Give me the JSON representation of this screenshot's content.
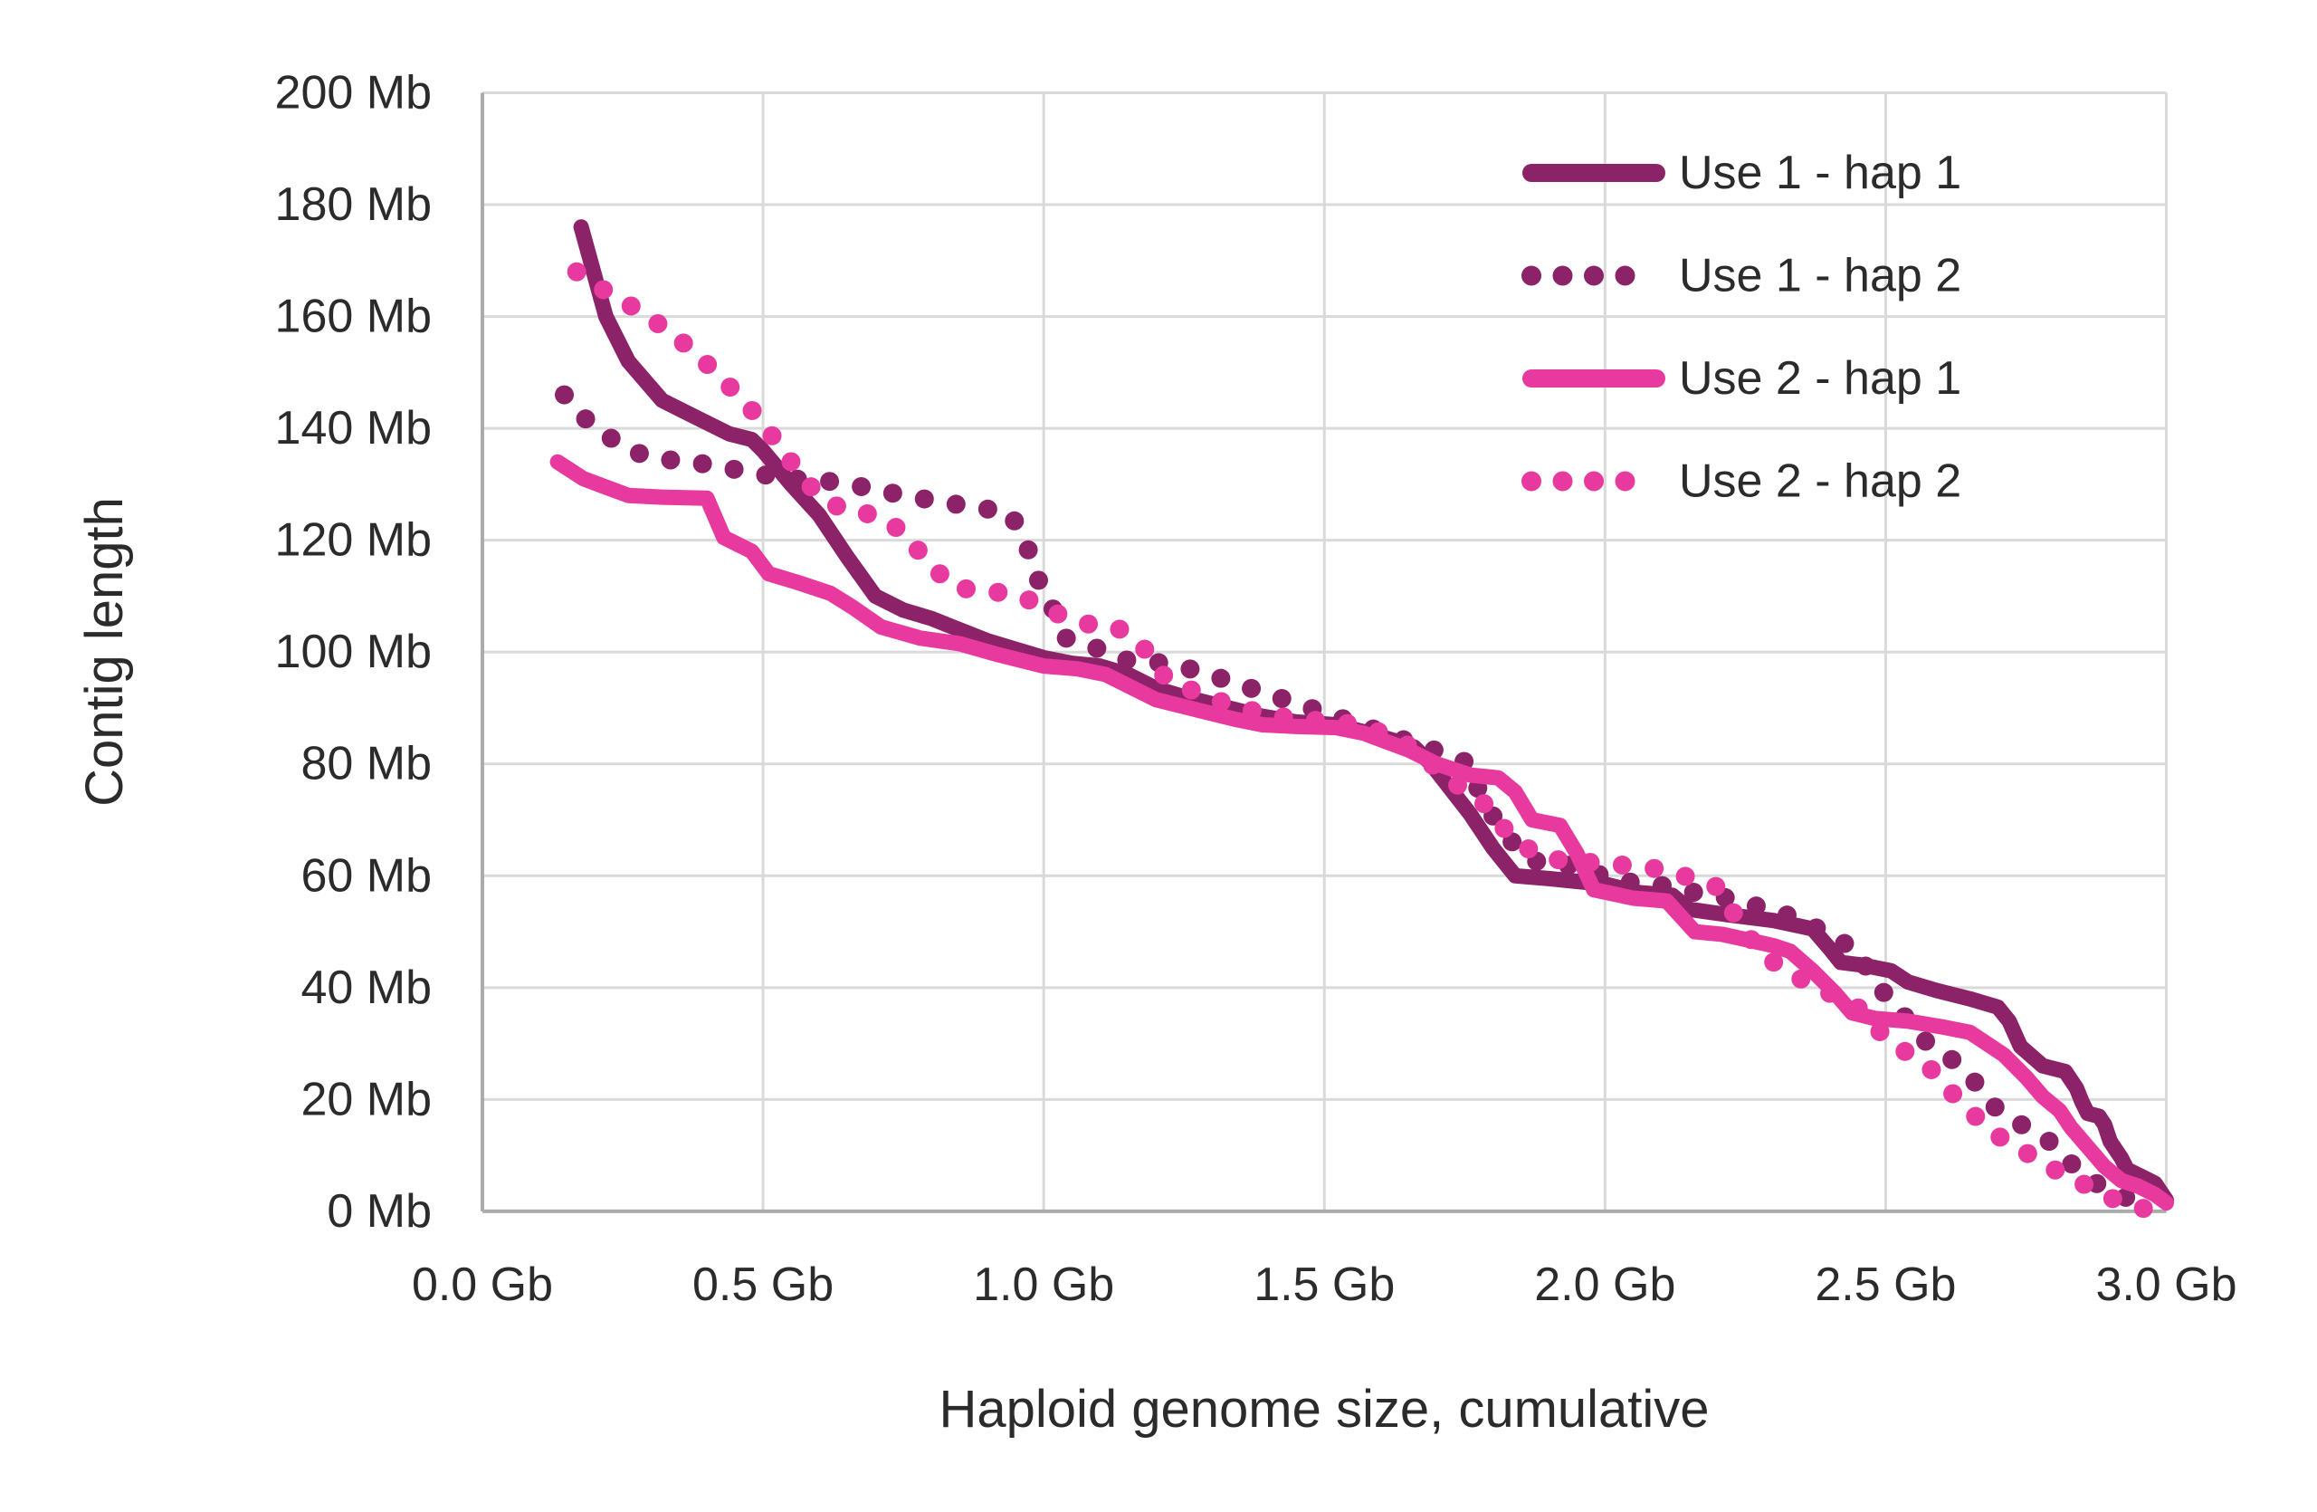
{
  "colors": {
    "use1": "#8C2268",
    "use2": "#E8399F",
    "gridline": "#D9D9D9",
    "axis": "#ABABAB",
    "text": "#2B2B2B"
  },
  "chart_data": {
    "type": "line",
    "title": "",
    "xlabel": "Haploid genome size, cumulative",
    "ylabel": "Contig length",
    "x_unit": "Gb",
    "y_unit": "Mb",
    "xlim": [
      0,
      3.0
    ],
    "ylim": [
      0,
      200
    ],
    "grid": true,
    "legend_position": "top-right",
    "x_tick_values": [
      0.0,
      0.5,
      1.0,
      1.5,
      2.0,
      2.5,
      3.0
    ],
    "x_tick_labels": [
      "0.0 Gb",
      "0.5 Gb",
      "1.0 Gb",
      "1.5 Gb",
      "2.0 Gb",
      "2.5 Gb",
      "3.0 Gb"
    ],
    "y_tick_values": [
      0,
      20,
      40,
      60,
      80,
      100,
      120,
      140,
      160,
      180,
      200
    ],
    "y_tick_labels": [
      "0 Mb",
      "20 Mb",
      "40 Mb",
      "60 Mb",
      "80 Mb",
      "100 Mb",
      "120 Mb",
      "140 Mb",
      "160 Mb",
      "180 Mb",
      "200 Mb"
    ],
    "series": [
      {
        "name": "Use 1 - hap 1",
        "style": "solid",
        "color_key": "use1",
        "points": [
          [
            0.176,
            176
          ],
          [
            0.22,
            160
          ],
          [
            0.26,
            152
          ],
          [
            0.32,
            145
          ],
          [
            0.38,
            142
          ],
          [
            0.44,
            139
          ],
          [
            0.48,
            138
          ],
          [
            0.5,
            136
          ],
          [
            0.55,
            130
          ],
          [
            0.6,
            124.5
          ],
          [
            0.65,
            117
          ],
          [
            0.7,
            110
          ],
          [
            0.75,
            107.5
          ],
          [
            0.8,
            106
          ],
          [
            0.85,
            104
          ],
          [
            0.9,
            102
          ],
          [
            0.95,
            100.5
          ],
          [
            1.0,
            99
          ],
          [
            1.05,
            98
          ],
          [
            1.1,
            97.5
          ],
          [
            1.15,
            96
          ],
          [
            1.2,
            93.5
          ],
          [
            1.25,
            92
          ],
          [
            1.33,
            90
          ],
          [
            1.39,
            88.5
          ],
          [
            1.45,
            87.5
          ],
          [
            1.52,
            87
          ],
          [
            1.58,
            85.5
          ],
          [
            1.63,
            84
          ],
          [
            1.66,
            83
          ],
          [
            1.69,
            80
          ],
          [
            1.76,
            71
          ],
          [
            1.8,
            65
          ],
          [
            1.84,
            60
          ],
          [
            1.9,
            59.5
          ],
          [
            1.95,
            59
          ],
          [
            2.0,
            58.5
          ],
          [
            2.06,
            57
          ],
          [
            2.12,
            56.5
          ],
          [
            2.15,
            54
          ],
          [
            2.22,
            53
          ],
          [
            2.3,
            52
          ],
          [
            2.37,
            50.5
          ],
          [
            2.4,
            47
          ],
          [
            2.42,
            44.5
          ],
          [
            2.46,
            44
          ],
          [
            2.51,
            43
          ],
          [
            2.54,
            41
          ],
          [
            2.59,
            39.5
          ],
          [
            2.65,
            38
          ],
          [
            2.7,
            36.5
          ],
          [
            2.72,
            34
          ],
          [
            2.74,
            29.5
          ],
          [
            2.78,
            26
          ],
          [
            2.82,
            25
          ],
          [
            2.84,
            22
          ],
          [
            2.85,
            19.5
          ],
          [
            2.86,
            17.5
          ],
          [
            2.88,
            17
          ],
          [
            2.89,
            15.5
          ],
          [
            2.9,
            12.5
          ],
          [
            2.92,
            9.5
          ],
          [
            2.93,
            7.5
          ],
          [
            2.96,
            6
          ],
          [
            2.98,
            5
          ],
          [
            3.0,
            2
          ]
        ]
      },
      {
        "name": "Use 1 - hap 2",
        "style": "dotted",
        "color_key": "use1",
        "points": [
          [
            0.146,
            146
          ],
          [
            0.19,
            141
          ],
          [
            0.24,
            137.5
          ],
          [
            0.29,
            135
          ],
          [
            0.36,
            134
          ],
          [
            0.41,
            133.5
          ],
          [
            0.48,
            132
          ],
          [
            0.55,
            131
          ],
          [
            0.62,
            130.5
          ],
          [
            0.68,
            129.5
          ],
          [
            0.75,
            128
          ],
          [
            0.81,
            127
          ],
          [
            0.87,
            126
          ],
          [
            0.94,
            125
          ],
          [
            0.97,
            119
          ],
          [
            0.99,
            113
          ],
          [
            1.02,
            107
          ],
          [
            1.04,
            102.5
          ],
          [
            1.1,
            100.5
          ],
          [
            1.15,
            98.5
          ],
          [
            1.22,
            98
          ],
          [
            1.28,
            96.5
          ],
          [
            1.34,
            94.5
          ],
          [
            1.4,
            92.5
          ],
          [
            1.46,
            90.5
          ],
          [
            1.52,
            88.5
          ],
          [
            1.58,
            86.5
          ],
          [
            1.65,
            84
          ],
          [
            1.71,
            82
          ],
          [
            1.76,
            80
          ],
          [
            1.78,
            73.5
          ],
          [
            1.82,
            68
          ],
          [
            1.85,
            64
          ],
          [
            1.88,
            62.5
          ],
          [
            1.93,
            62
          ],
          [
            1.98,
            60.5
          ],
          [
            2.03,
            59
          ],
          [
            2.09,
            58.5
          ],
          [
            2.16,
            57
          ],
          [
            2.22,
            56
          ],
          [
            2.29,
            54
          ],
          [
            2.34,
            52.5
          ],
          [
            2.4,
            49.5
          ],
          [
            2.45,
            46.5
          ],
          [
            2.48,
            41
          ],
          [
            2.52,
            36.5
          ],
          [
            2.57,
            30.5
          ],
          [
            2.62,
            27
          ],
          [
            2.66,
            23
          ],
          [
            2.7,
            18
          ],
          [
            2.75,
            15
          ],
          [
            2.8,
            12
          ],
          [
            2.84,
            7.5
          ],
          [
            2.89,
            4
          ],
          [
            2.94,
            2
          ],
          [
            2.97,
            1
          ]
        ]
      },
      {
        "name": "Use 2 - hap 1",
        "style": "solid",
        "color_key": "use2",
        "points": [
          [
            0.134,
            134
          ],
          [
            0.18,
            131
          ],
          [
            0.22,
            129.5
          ],
          [
            0.26,
            128
          ],
          [
            0.32,
            127.7
          ],
          [
            0.4,
            127.5
          ],
          [
            0.43,
            120.5
          ],
          [
            0.48,
            118
          ],
          [
            0.51,
            114
          ],
          [
            0.56,
            112.5
          ],
          [
            0.62,
            110.5
          ],
          [
            0.66,
            108
          ],
          [
            0.71,
            104.5
          ],
          [
            0.78,
            102.5
          ],
          [
            0.85,
            101.5
          ],
          [
            0.92,
            99.5
          ],
          [
            1.0,
            97.5
          ],
          [
            1.06,
            97
          ],
          [
            1.11,
            96
          ],
          [
            1.16,
            93.5
          ],
          [
            1.2,
            91.5
          ],
          [
            1.28,
            89.5
          ],
          [
            1.34,
            88
          ],
          [
            1.39,
            87
          ],
          [
            1.45,
            86.7
          ],
          [
            1.52,
            86.5
          ],
          [
            1.57,
            85.5
          ],
          [
            1.65,
            82.5
          ],
          [
            1.7,
            80
          ],
          [
            1.76,
            78
          ],
          [
            1.81,
            77.5
          ],
          [
            1.84,
            75
          ],
          [
            1.87,
            70
          ],
          [
            1.92,
            69
          ],
          [
            1.95,
            64
          ],
          [
            1.98,
            57.5
          ],
          [
            2.05,
            56
          ],
          [
            2.11,
            55.5
          ],
          [
            2.16,
            50
          ],
          [
            2.21,
            49.5
          ],
          [
            2.3,
            47.5
          ],
          [
            2.33,
            46.5
          ],
          [
            2.37,
            43
          ],
          [
            2.41,
            39
          ],
          [
            2.44,
            35.5
          ],
          [
            2.48,
            34.5
          ],
          [
            2.54,
            34
          ],
          [
            2.6,
            33
          ],
          [
            2.65,
            32
          ],
          [
            2.71,
            28
          ],
          [
            2.75,
            24
          ],
          [
            2.78,
            20.5
          ],
          [
            2.81,
            18
          ],
          [
            2.83,
            15
          ],
          [
            2.86,
            11.5
          ],
          [
            2.89,
            8
          ],
          [
            2.92,
            5.5
          ],
          [
            2.95,
            4.5
          ],
          [
            2.98,
            3
          ],
          [
            3.0,
            1.5
          ]
        ]
      },
      {
        "name": "Use 2 - hap 2",
        "style": "dotted",
        "color_key": "use2",
        "points": [
          [
            0.168,
            168
          ],
          [
            0.22,
            164.5
          ],
          [
            0.28,
            161
          ],
          [
            0.33,
            157.5
          ],
          [
            0.38,
            153.5
          ],
          [
            0.42,
            149.5
          ],
          [
            0.47,
            144.5
          ],
          [
            0.51,
            139.5
          ],
          [
            0.55,
            134
          ],
          [
            0.59,
            129
          ],
          [
            0.64,
            125.5
          ],
          [
            0.7,
            124.5
          ],
          [
            0.75,
            121.5
          ],
          [
            0.79,
            116.5
          ],
          [
            0.84,
            111.5
          ],
          [
            0.9,
            111
          ],
          [
            0.96,
            110
          ],
          [
            1.02,
            107
          ],
          [
            1.08,
            105
          ],
          [
            1.13,
            104.5
          ],
          [
            1.18,
            100.5
          ],
          [
            1.22,
            95
          ],
          [
            1.28,
            92.5
          ],
          [
            1.32,
            91
          ],
          [
            1.39,
            89
          ],
          [
            1.45,
            88
          ],
          [
            1.53,
            87.5
          ],
          [
            1.59,
            86
          ],
          [
            1.64,
            84
          ],
          [
            1.74,
            76
          ],
          [
            1.79,
            72.5
          ],
          [
            1.82,
            68.5
          ],
          [
            1.85,
            65.5
          ],
          [
            1.9,
            63
          ],
          [
            1.96,
            62.5
          ],
          [
            2.02,
            62
          ],
          [
            2.08,
            61.5
          ],
          [
            2.14,
            60
          ],
          [
            2.2,
            58
          ],
          [
            2.25,
            50
          ],
          [
            2.28,
            46
          ],
          [
            2.33,
            42.5
          ],
          [
            2.39,
            39.5
          ],
          [
            2.45,
            36.5
          ],
          [
            2.5,
            31
          ],
          [
            2.55,
            27.5
          ],
          [
            2.58,
            25.5
          ],
          [
            2.62,
            21
          ],
          [
            2.66,
            17
          ],
          [
            2.7,
            13.5
          ],
          [
            2.75,
            10.5
          ],
          [
            2.8,
            7.5
          ],
          [
            2.85,
            5
          ],
          [
            2.91,
            2
          ],
          [
            2.96,
            0.5
          ]
        ]
      }
    ]
  }
}
